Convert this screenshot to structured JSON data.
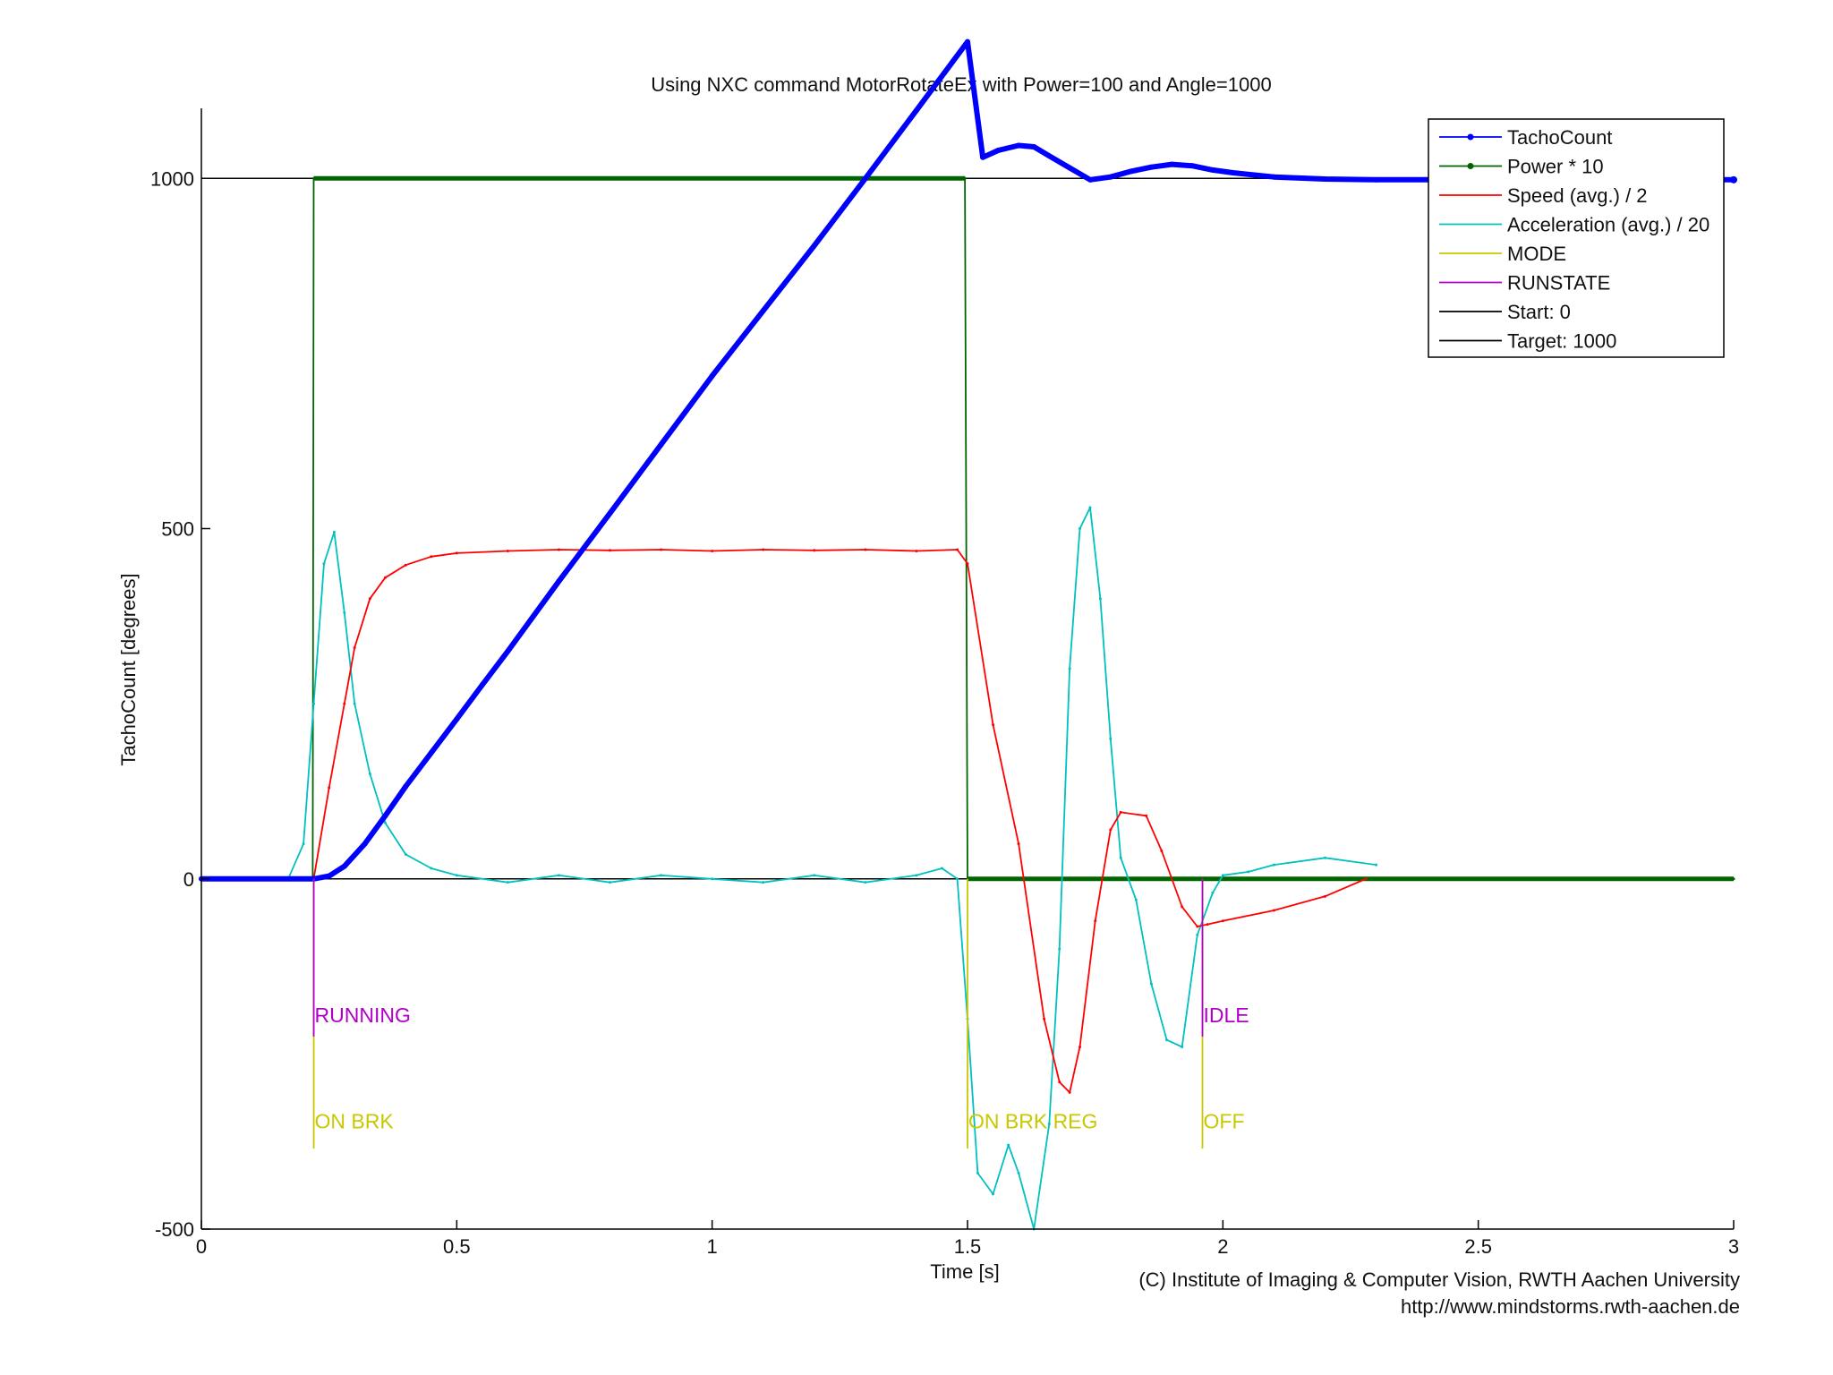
{
  "chart_data": {
    "type": "line",
    "title": "Using NXC command MotorRotateEx with Power=100 and Angle=1000",
    "xlabel": "Time [s]",
    "ylabel": "TachoCount [degrees]",
    "xlim": [
      0,
      3
    ],
    "ylim": [
      -500,
      1100
    ],
    "xticks": [
      0,
      0.5,
      1,
      1.5,
      2,
      2.5,
      3
    ],
    "xtick_labels": [
      "0",
      "0.5",
      "1",
      "1.5",
      "2",
      "2.5",
      "3"
    ],
    "yticks": [
      -500,
      0,
      500,
      1000
    ],
    "ytick_labels": [
      "-500",
      "0",
      "500",
      "1000"
    ],
    "grid": false,
    "legend_position": "top-right",
    "series": [
      {
        "name": "TachoCount",
        "color": "#0000ff",
        "marker": "dot",
        "x": [
          0,
          0.22,
          0.25,
          0.28,
          0.32,
          0.36,
          0.4,
          0.45,
          0.5,
          0.55,
          0.6,
          0.7,
          0.8,
          0.9,
          1.0,
          1.1,
          1.2,
          1.3,
          1.4,
          1.5,
          1.53,
          1.56,
          1.6,
          1.63,
          1.66,
          1.7,
          1.74,
          1.78,
          1.82,
          1.86,
          1.9,
          1.94,
          1.98,
          2.02,
          2.1,
          2.2,
          2.3,
          2.5,
          2.7,
          3.0
        ],
        "y": [
          0,
          0,
          4,
          18,
          50,
          90,
          132,
          180,
          228,
          277,
          325,
          425,
          522,
          620,
          718,
          811,
          904,
          1000,
          1097,
          1195,
          1030,
          1040,
          1047,
          1045,
          1032,
          1015,
          998,
          1002,
          1010,
          1016,
          1020,
          1018,
          1012,
          1008,
          1002,
          999,
          998,
          998,
          998,
          998
        ]
      },
      {
        "name": "Power * 10",
        "color": "#006400",
        "marker": "dot",
        "x": [
          0,
          0.218,
          0.22,
          1.495,
          1.5,
          3.0
        ],
        "y": [
          0,
          0,
          1000,
          1000,
          0,
          0
        ]
      },
      {
        "name": "Speed (avg.) / 2",
        "color": "#ff0000",
        "marker": "none",
        "x": [
          0.22,
          0.25,
          0.28,
          0.3,
          0.33,
          0.36,
          0.4,
          0.45,
          0.5,
          0.6,
          0.7,
          0.8,
          0.9,
          1.0,
          1.1,
          1.2,
          1.3,
          1.4,
          1.48,
          1.5,
          1.55,
          1.6,
          1.65,
          1.68,
          1.7,
          1.72,
          1.75,
          1.78,
          1.8,
          1.85,
          1.88,
          1.92,
          1.95,
          1.97,
          2.0,
          2.1,
          2.2,
          2.28
        ],
        "y": [
          0,
          130,
          250,
          330,
          400,
          430,
          448,
          460,
          465,
          468,
          470,
          469,
          470,
          468,
          470,
          469,
          470,
          468,
          470,
          450,
          220,
          50,
          -200,
          -290,
          -305,
          -240,
          -60,
          70,
          95,
          90,
          40,
          -40,
          -68,
          -65,
          -60,
          -45,
          -25,
          0
        ]
      },
      {
        "name": "Acceleration (avg.) / 20",
        "color": "#00c0c0",
        "marker": "none",
        "x": [
          0.0,
          0.17,
          0.2,
          0.22,
          0.24,
          0.26,
          0.28,
          0.3,
          0.33,
          0.36,
          0.4,
          0.45,
          0.5,
          0.6,
          0.7,
          0.8,
          0.9,
          1.0,
          1.1,
          1.2,
          1.3,
          1.4,
          1.45,
          1.48,
          1.5,
          1.52,
          1.55,
          1.58,
          1.6,
          1.63,
          1.66,
          1.68,
          1.7,
          1.72,
          1.74,
          1.76,
          1.78,
          1.8,
          1.83,
          1.86,
          1.89,
          1.92,
          1.95,
          1.98,
          2.0,
          2.05,
          2.1,
          2.2,
          2.3
        ],
        "y": [
          0,
          0,
          50,
          250,
          450,
          495,
          380,
          250,
          150,
          80,
          35,
          15,
          5,
          -5,
          5,
          -5,
          5,
          0,
          -5,
          5,
          -5,
          5,
          15,
          0,
          -200,
          -420,
          -450,
          -380,
          -420,
          -500,
          -350,
          -100,
          300,
          500,
          530,
          400,
          200,
          30,
          -30,
          -150,
          -230,
          -240,
          -80,
          -20,
          5,
          10,
          20,
          30,
          20
        ]
      },
      {
        "name": "MODE",
        "color": "#c8c800",
        "marker": "none",
        "annotations": [
          "ON BRK",
          "ON BRK REG",
          "OFF"
        ],
        "annotation_x": [
          0.22,
          1.5,
          1.96
        ]
      },
      {
        "name": "RUNSTATE",
        "color": "#b000c8",
        "marker": "none",
        "annotations": [
          "RUNNING",
          "IDLE"
        ],
        "annotation_x": [
          0.22,
          1.96
        ]
      },
      {
        "name": "Start: 0",
        "color": "#000000",
        "marker": "none",
        "y_const": 0
      },
      {
        "name": "Target: 1000",
        "color": "#000000",
        "marker": "none",
        "y_const": 1000
      }
    ]
  },
  "footer": {
    "copyright": "(C) Institute of Imaging & Computer Vision, RWTH Aachen University",
    "url": "http://www.mindstorms.rwth-aachen.de"
  }
}
